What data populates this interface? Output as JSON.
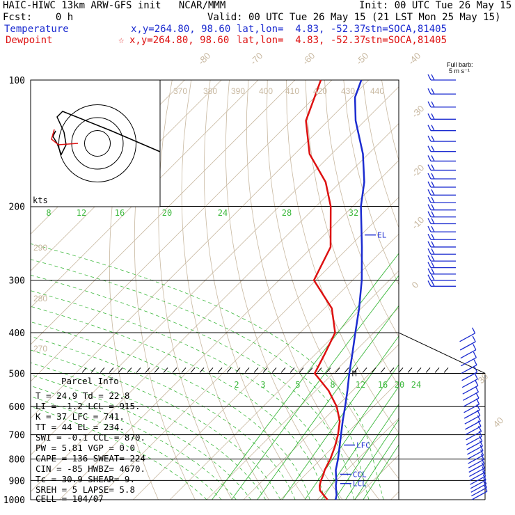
{
  "header": {
    "line1_left": "HAIC-HIWC 13km ARW-GFS init   NCAR/MMM",
    "line1_right": "Init: 00 UTC Tue 26 May 15",
    "line2_left": "Fcst:    0 h",
    "line2_right": "Valid: 00 UTC Tue 26 May 15 (21 LST Mon 25 May 15)",
    "temp_row": {
      "label": "Temperature",
      "xy": "x,y=264.80, 98.60",
      "latlon": "lat,lon=  4.83, -52.37",
      "stn": "stn=SOCA,81405"
    },
    "dew_row": {
      "label": "Dewpoint",
      "marker": "☆",
      "xy": "x,y=264.80, 98.60",
      "latlon": "lat,lon=  4.83, -52.37",
      "stn": "stn=SOCA,81405"
    }
  },
  "barb_key": {
    "line1": "Full barb:",
    "line2": "5 m s⁻¹"
  },
  "hodograph": {
    "units": "kts"
  },
  "parcel_info": {
    "title": "Parcel Info",
    "rows": [
      "T   =    24.9  Td =  22.8",
      "LI  =    -1.2  LCL =  915.",
      "K   =     37  LFC =  741.",
      "TT  =     44  EL  =  234.",
      "SWI =    -0.1  CCL =  870.",
      "PW  =    5.81  VGP =   0.0",
      "CAPE =   136  SWEAT=  224",
      "CIN  =   -85  HWBZ= 4670.",
      "Tc  =    30.9  SHEAR=    9.",
      "SREH =     5  LAPSE=   5.8",
      "CELL = 104/07"
    ]
  },
  "chart_data": {
    "type": "line",
    "title": "",
    "y_axis": {
      "scale": "log",
      "ylim": [
        1000,
        100
      ],
      "ticks": [
        100,
        200,
        300,
        400,
        500,
        600,
        700,
        800,
        900,
        1000
      ]
    },
    "isotherm_labels": [
      "-80",
      "-70",
      "-60",
      "-50",
      "-40",
      "-30",
      "-20",
      "-10",
      "0",
      "30",
      "40"
    ],
    "mixing_ratio_labels_upper": [
      "8",
      "12",
      "16",
      "20",
      "24",
      "28",
      "32"
    ],
    "mixing_ratio_labels_lower": [
      "2",
      "3",
      "5",
      "8",
      "12",
      "16",
      "20",
      "24"
    ],
    "theta_labels": [
      "370",
      "380",
      "390",
      "400",
      "410",
      "420",
      "430",
      "440",
      "290",
      "280",
      "270"
    ],
    "levels_markers": [
      {
        "label": "EL",
        "pressure": 234
      },
      {
        "label": "LFC",
        "pressure": 741
      },
      {
        "label": "CCL",
        "pressure": 870
      },
      {
        "label": "LCL",
        "pressure": 915
      },
      {
        "label": "M",
        "pressure": 500
      }
    ],
    "series": [
      {
        "name": "Temperature",
        "color": "#1b2bd0",
        "pressure": [
          1000,
          975,
          950,
          925,
          900,
          875,
          850,
          800,
          750,
          700,
          650,
          600,
          550,
          500,
          450,
          400,
          350,
          300,
          250,
          200,
          175,
          150,
          125,
          110,
          100
        ],
        "values": [
          25.0,
          24.0,
          22.6,
          21.2,
          20.0,
          18.5,
          17.0,
          14.6,
          11.8,
          8.8,
          5.6,
          2.3,
          -1.4,
          -5.6,
          -10.0,
          -15.0,
          -20.6,
          -27.5,
          -36.5,
          -47.8,
          -53.5,
          -61.5,
          -72.5,
          -79.0,
          -82.0
        ]
      },
      {
        "name": "Dewpoint",
        "color": "#dd1111",
        "pressure": [
          1000,
          975,
          950,
          925,
          900,
          875,
          850,
          800,
          750,
          700,
          650,
          600,
          550,
          500,
          450,
          400,
          350,
          300,
          250,
          200,
          175,
          150,
          125,
          110,
          100
        ],
        "values": [
          22.8,
          20.5,
          18.2,
          16.8,
          15.8,
          15.0,
          14.0,
          12.5,
          10.5,
          8.0,
          4.8,
          0.0,
          -6.5,
          -15.0,
          -17.5,
          -20.5,
          -28.0,
          -40.5,
          -45.0,
          -56.0,
          -64.0,
          -76.0,
          -86.0,
          -90.0,
          -93.0
        ]
      }
    ],
    "hodograph_rings_kts": [
      5,
      10,
      15
    ],
    "wind_barbs_pressure": [
      100,
      108,
      116,
      124,
      132,
      140,
      148,
      156,
      164,
      172,
      180,
      188,
      196,
      204,
      212,
      220,
      230,
      240,
      250,
      260,
      270,
      280,
      290,
      300,
      310,
      420,
      440,
      460,
      480,
      500,
      520,
      540,
      560,
      580,
      600,
      620,
      640,
      660,
      680,
      700,
      720,
      740,
      760,
      780,
      800,
      820,
      840,
      860,
      880,
      900,
      920,
      940,
      960,
      980,
      1000
    ]
  }
}
